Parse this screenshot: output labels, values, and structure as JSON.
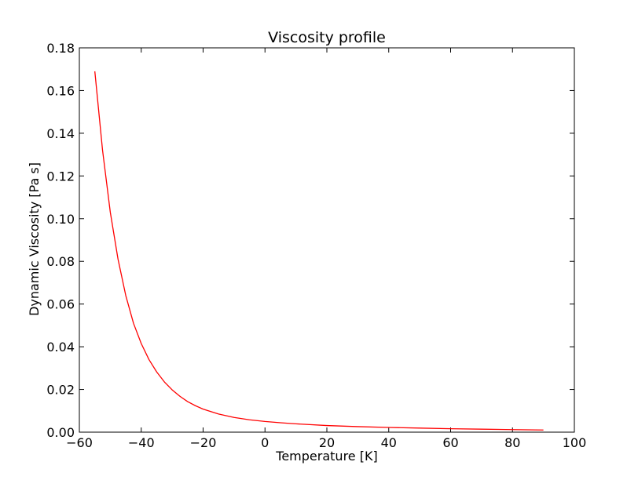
{
  "chart_data": {
    "type": "line",
    "title": "Viscosity profile",
    "xlabel": "Temperature [K]",
    "ylabel": "Dynamic Viscosity [Pa s]",
    "xlim": [
      -60,
      100
    ],
    "ylim": [
      0.0,
      0.18
    ],
    "xticks": [
      -60,
      -40,
      -20,
      0,
      20,
      40,
      60,
      80,
      100
    ],
    "xtick_labels": [
      "−60",
      "−40",
      "−20",
      "0",
      "20",
      "40",
      "60",
      "80",
      "100"
    ],
    "yticks": [
      0.0,
      0.02,
      0.04,
      0.06,
      0.08,
      0.1,
      0.12,
      0.14,
      0.16,
      0.18
    ],
    "ytick_labels": [
      "0.00",
      "0.02",
      "0.04",
      "0.06",
      "0.08",
      "0.10",
      "0.12",
      "0.14",
      "0.16",
      "0.18"
    ],
    "grid": false,
    "series": [
      {
        "color": "#ff0000",
        "x": [
          -55,
          -52.5,
          -50,
          -47.5,
          -45,
          -42.5,
          -40,
          -37.5,
          -35,
          -32.5,
          -30,
          -27.5,
          -25,
          -22.5,
          -20,
          -15,
          -10,
          -5,
          0,
          5,
          10,
          20,
          30,
          40,
          50,
          60,
          70,
          80,
          90
        ],
        "y": [
          0.169,
          0.132,
          0.103,
          0.081,
          0.064,
          0.051,
          0.0415,
          0.034,
          0.0282,
          0.0235,
          0.0198,
          0.0168,
          0.0143,
          0.0124,
          0.0108,
          0.0085,
          0.0069,
          0.0058,
          0.005,
          0.0044,
          0.0039,
          0.0031,
          0.0026,
          0.0022,
          0.0019,
          0.0016,
          0.0014,
          0.0012,
          0.001
        ]
      }
    ]
  }
}
